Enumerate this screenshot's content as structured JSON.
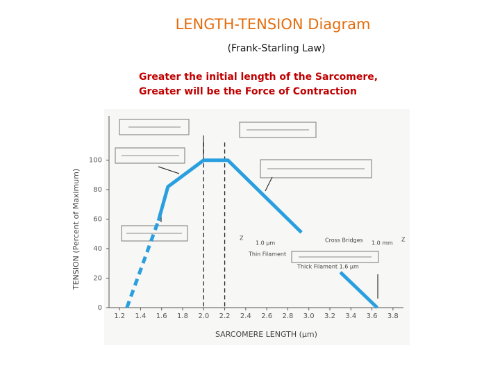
{
  "chart_data": {
    "type": "line",
    "title": "LENGTH-TENSION Diagram",
    "subtitle": "(Frank-Starling Law)",
    "notes": [
      "Greater the initial length of the Sarcomere,",
      "Greater will be the Force of Contraction"
    ],
    "x_label": "SARCOMERE LENGTH (μm)",
    "y_label": "TENSION (Percent of Maximum)",
    "series": [
      {
        "color": "#2a9fe0",
        "dash": true,
        "x": [
          1.27,
          1.57
        ],
        "values": [
          0,
          59
        ]
      },
      {
        "color": "#2a9fe0",
        "x": [
          1.57,
          1.66,
          2.0,
          2.23,
          2.93,
          null,
          3.3,
          3.65
        ],
        "values": [
          59,
          82,
          100,
          100,
          51,
          null,
          24,
          0
        ]
      }
    ],
    "vlines": [
      2.0,
      2.2
    ],
    "annotations": [
      "Z",
      "1.0 μm",
      "Cross Bridges",
      "Thin Filament",
      "Thick Filament 1.6 μm",
      "1.0 mm",
      "Z"
    ],
    "xlim": [
      1.1,
      3.9
    ],
    "xticks": [
      1.2,
      1.4,
      1.6,
      1.8,
      {
        "value": 2.0,
        "label": "2.0"
      },
      2.2,
      2.4,
      2.6,
      2.8,
      {
        "value": 3.0,
        "label": "3.0"
      },
      3.2,
      3.4,
      3.6,
      3.8
    ],
    "ylim": [
      0,
      130
    ],
    "yticks": [
      0,
      20,
      40,
      60,
      80,
      100
    ]
  }
}
